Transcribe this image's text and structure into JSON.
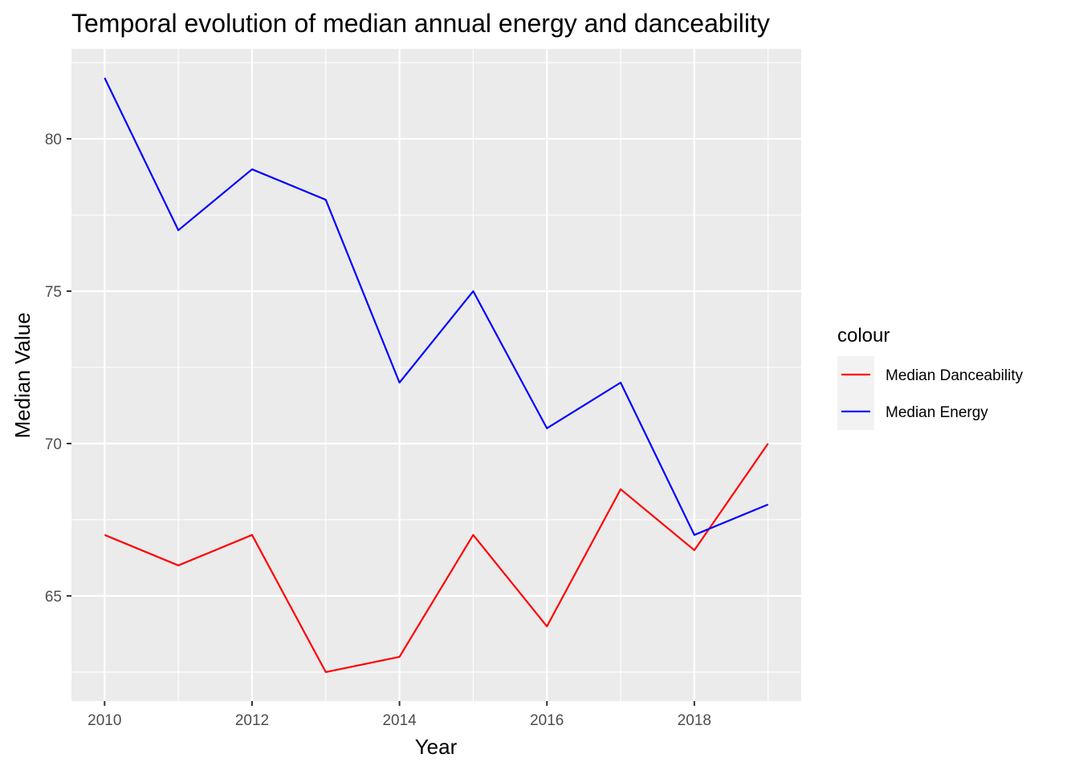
{
  "chart_data": {
    "type": "line",
    "title": "Temporal evolution of median annual energy and danceability",
    "xlabel": "Year",
    "ylabel": "Median Value",
    "x": [
      2010,
      2011,
      2012,
      2013,
      2014,
      2015,
      2016,
      2017,
      2018,
      2019
    ],
    "xlim": [
      2009.55,
      2019.45
    ],
    "ylim": [
      61.55,
      82.95
    ],
    "x_ticks": [
      2010,
      2012,
      2014,
      2016,
      2018
    ],
    "x_minor": [
      2011,
      2013,
      2015,
      2017,
      2019
    ],
    "y_ticks": [
      65,
      70,
      75,
      80
    ],
    "y_minor": [
      62.5,
      67.5,
      72.5,
      77.5,
      82.5
    ],
    "grid": true,
    "legend": {
      "title": "colour",
      "position": "right"
    },
    "series": [
      {
        "name": "Median Danceability",
        "color": "#ff0000",
        "values": [
          67,
          66,
          67,
          62.5,
          63,
          67,
          64,
          68.5,
          66.5,
          70
        ]
      },
      {
        "name": "Median Energy",
        "color": "#0000ff",
        "values": [
          82,
          77,
          79,
          78,
          72,
          75,
          70.5,
          72,
          67,
          68
        ]
      }
    ]
  }
}
